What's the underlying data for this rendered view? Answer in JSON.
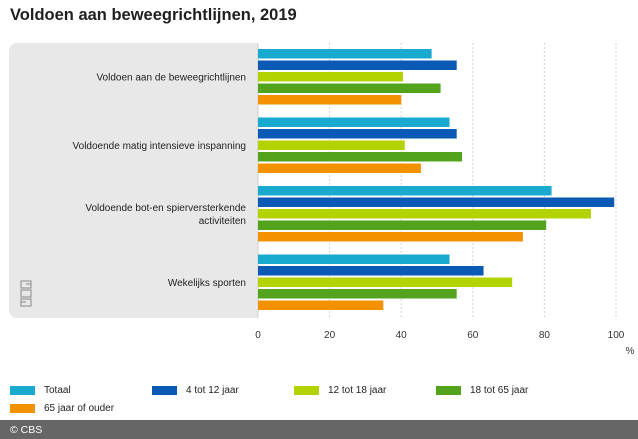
{
  "title": "Voldoen aan beweegrichtlijnen, 2019",
  "chart_data": {
    "type": "bar",
    "orientation": "horizontal",
    "title": "Voldoen aan beweegrichtlijnen, 2019",
    "xlabel": "%",
    "xlim": [
      0,
      100
    ],
    "xticks": [
      0,
      20,
      40,
      60,
      80,
      100
    ],
    "categories": [
      "Voldoen aan de beweegrichtlijnen",
      "Voldoende matig intensieve inspanning",
      "Voldoende bot-en spierversterkende activiteiten",
      "Wekelijks sporten"
    ],
    "category_lines": [
      [
        "Voldoen aan de beweegrichtlijnen"
      ],
      [
        "Voldoende matig intensieve inspanning"
      ],
      [
        "Voldoende bot-en spierversterkende",
        "activiteiten"
      ],
      [
        "Wekelijks sporten"
      ]
    ],
    "series": [
      {
        "name": "Totaal",
        "color": "#1aa9cf",
        "values": [
          48.5,
          53.5,
          82,
          53.5
        ]
      },
      {
        "name": "4 tot 12 jaar",
        "color": "#0a59b5",
        "values": [
          55.5,
          55.5,
          99.5,
          63
        ]
      },
      {
        "name": "12 tot 18 jaar",
        "color": "#b3d200",
        "values": [
          40.5,
          41,
          93,
          71
        ]
      },
      {
        "name": "18 tot 65 jaar",
        "color": "#53a31d",
        "values": [
          51,
          57,
          80.5,
          55.5
        ]
      },
      {
        "name": "65 jaar of ouder",
        "color": "#f39200",
        "values": [
          40,
          45.5,
          74,
          35
        ]
      }
    ]
  },
  "footer": {
    "copyright": "© CBS"
  }
}
